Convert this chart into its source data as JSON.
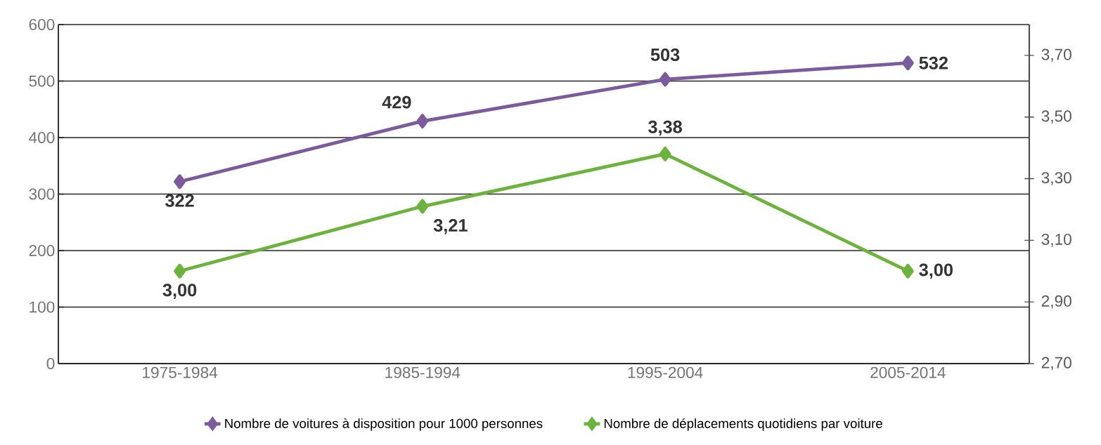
{
  "chart_data": {
    "type": "line",
    "categories": [
      "1975-1984",
      "1985-1994",
      "1995-2004",
      "2005-2014"
    ],
    "series": [
      {
        "name": "Nombre de voitures à disposition pour 1000 personnes",
        "color": "#7b5b9b",
        "values": [
          322,
          429,
          503,
          532
        ],
        "value_labels": [
          "322",
          "429",
          "503",
          "532"
        ]
      },
      {
        "name": "Nombre de déplacements quotidiens par voiture",
        "color": "#6cb33e",
        "values": [
          3.0,
          3.21,
          3.38,
          3.0
        ],
        "value_labels": [
          "3,00",
          "3,21",
          "3,38",
          "3,00"
        ],
        "axis": "y2"
      }
    ],
    "ylim": [
      0,
      600
    ],
    "yticks": [
      0,
      100,
      200,
      300,
      400,
      500,
      600
    ],
    "y2lim": [
      2.7,
      3.8
    ],
    "y2ticks": [
      {
        "value": 2.7,
        "label": "2,70"
      },
      {
        "value": 2.9,
        "label": "2,90"
      },
      {
        "value": 3.1,
        "label": "3,10"
      },
      {
        "value": 3.3,
        "label": "3,30"
      },
      {
        "value": 3.5,
        "label": "3,50"
      },
      {
        "value": 3.7,
        "label": "3,70"
      }
    ],
    "grid": "y",
    "legend": "bottom",
    "marker": "diamond",
    "line_style": "solid"
  }
}
